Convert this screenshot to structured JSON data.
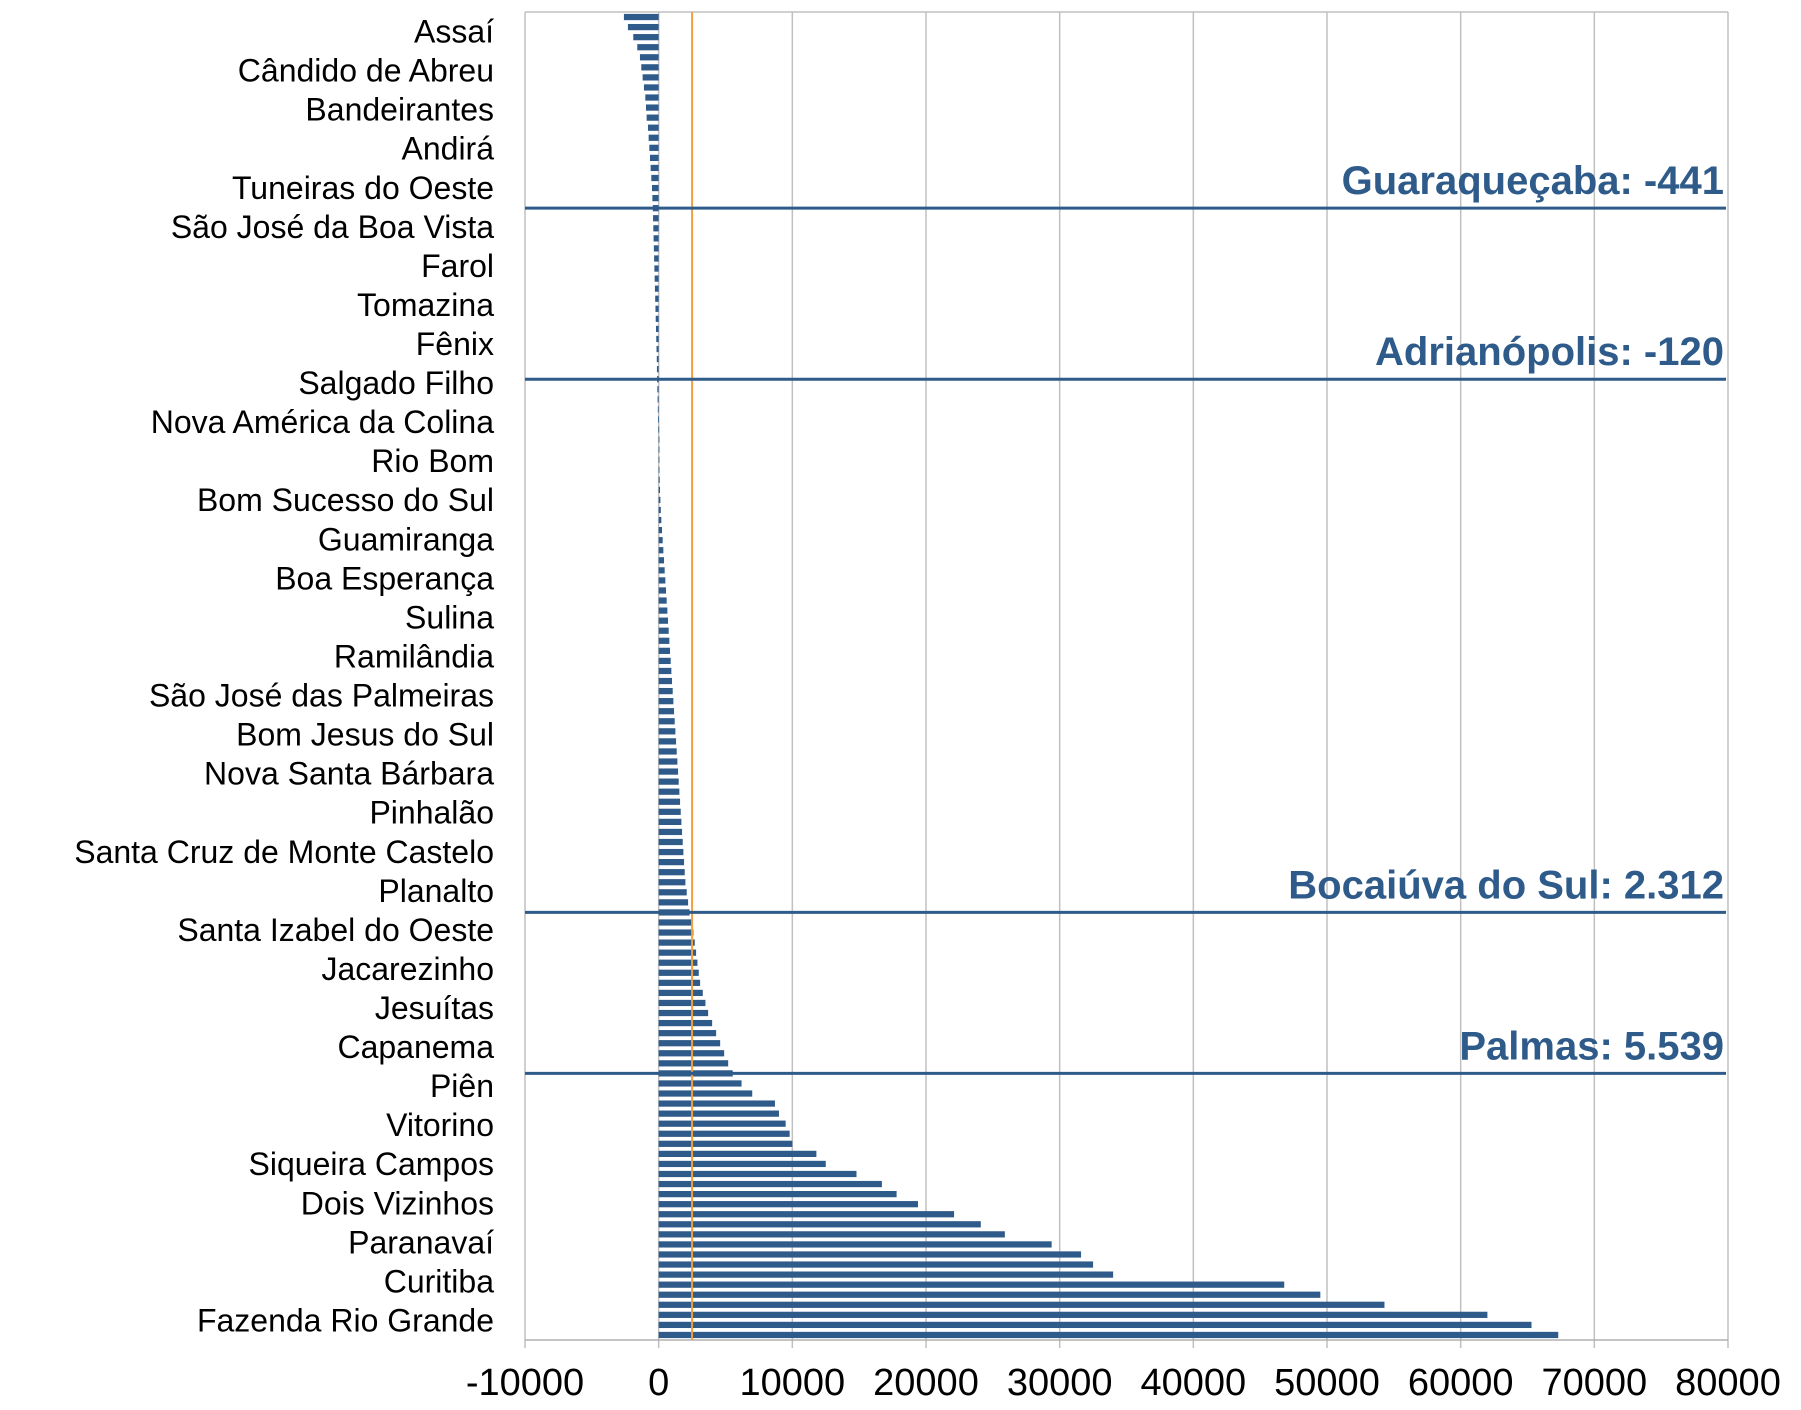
{
  "colors": {
    "bar": "#2f5b8a",
    "reference_line": "#f0a040",
    "annotation": "#2f5b8a",
    "grid": "#c0c0c0",
    "axis": "#b0b0b0"
  },
  "chart_data": {
    "type": "bar",
    "orientation": "horizontal",
    "title": "",
    "xlabel": "",
    "ylabel": "",
    "xlim": [
      -10000,
      80000
    ],
    "xticks": [
      "-10000",
      "0",
      "10000",
      "20000",
      "30000",
      "40000",
      "50000",
      "60000",
      "70000",
      "80000"
    ],
    "grid": true,
    "reference_line_x": 2500,
    "category_labels": [
      "Assaí",
      "Cândido de Abreu",
      "Bandeirantes",
      "Andirá",
      "Tuneiras do Oeste",
      "São José da Boa Vista",
      "Farol",
      "Tomazina",
      "Fênix",
      "Salgado Filho",
      "Nova América da Colina",
      "Rio Bom",
      "Bom Sucesso do Sul",
      "Guamiranga",
      "Boa Esperança",
      "Sulina",
      "Ramilândia",
      "São José das Palmeiras",
      "Bom Jesus do Sul",
      "Nova Santa Bárbara",
      "Pinhalão",
      "Santa Cruz de Monte Castelo",
      "Planalto",
      "Santa Izabel do Oeste",
      "Jacarezinho",
      "Jesuítas",
      "Capanema",
      "Piên",
      "Vitorino",
      "Siqueira Campos",
      "Dois Vizinhos",
      "Paranavaí",
      "Curitiba",
      "Fazenda Rio Grande"
    ],
    "values": [
      -2600,
      -2300,
      -1900,
      -1600,
      -1400,
      -1300,
      -1200,
      -1100,
      -1000,
      -950,
      -900,
      -800,
      -750,
      -700,
      -650,
      -600,
      -550,
      -500,
      -470,
      -441,
      -420,
      -400,
      -380,
      -360,
      -340,
      -320,
      -300,
      -280,
      -260,
      -240,
      -220,
      -200,
      -180,
      -160,
      -140,
      -130,
      -120,
      -100,
      -80,
      -60,
      -40,
      -20,
      0,
      20,
      40,
      60,
      80,
      100,
      130,
      160,
      200,
      250,
      300,
      350,
      400,
      450,
      500,
      550,
      600,
      650,
      700,
      750,
      800,
      850,
      900,
      950,
      1000,
      1050,
      1100,
      1150,
      1200,
      1250,
      1300,
      1350,
      1400,
      1450,
      1500,
      1550,
      1600,
      1650,
      1700,
      1750,
      1800,
      1850,
      1900,
      1950,
      2000,
      2100,
      2200,
      2312,
      2450,
      2600,
      2700,
      2800,
      2900,
      3000,
      3100,
      3300,
      3500,
      3700,
      4000,
      4300,
      4600,
      4900,
      5200,
      5539,
      6200,
      7000,
      8700,
      9000,
      9500,
      9800,
      10000,
      11800,
      12500,
      14800,
      16700,
      17800,
      19400,
      22100,
      24100,
      25900,
      29400,
      31600,
      32500,
      34000,
      46800,
      49500,
      54300,
      62000,
      65300,
      67300
    ],
    "annotations": [
      {
        "label": "Guaraqueçaba: -441",
        "value": -441
      },
      {
        "label": "Adrianópolis: -120",
        "value": -120
      },
      {
        "label": "Bocaiúva do Sul: 2.312",
        "value": 2312
      },
      {
        "label": "Palmas: 5.539",
        "value": 5539
      }
    ]
  }
}
